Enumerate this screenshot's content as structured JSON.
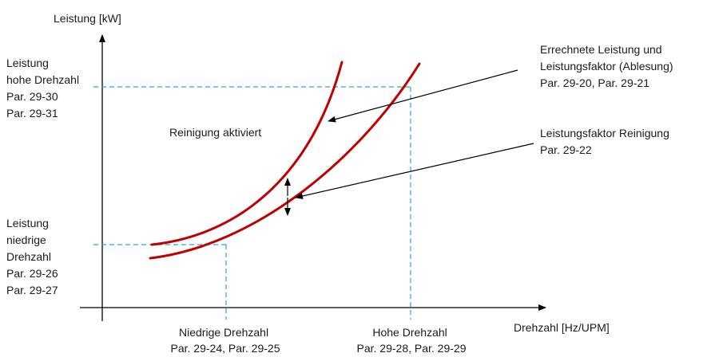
{
  "axes": {
    "y_label": "Leistung [kW]",
    "x_label": "Drehzahl [Hz/UPM]"
  },
  "high_power": {
    "lines": [
      "Leistung",
      "hohe Drehzahl",
      "Par. 29-30",
      "Par. 29-31"
    ]
  },
  "low_power": {
    "lines": [
      "Leistung",
      "niedrige",
      "Drehzahl",
      "Par. 29-26",
      "Par. 29-27"
    ]
  },
  "low_speed": {
    "lines": [
      "Niedrige Drehzahl",
      "Par. 29-24, Par. 29-25"
    ]
  },
  "high_speed": {
    "lines": [
      "Hohe Drehzahl",
      "Par. 29-28, Par. 29-29"
    ]
  },
  "calc_power": {
    "lines": [
      "Errechnete Leistung und",
      "Leistungsfaktor (Ablesung)",
      "Par. 29-20, Par. 29-21"
    ]
  },
  "cleaning_factor": {
    "lines": [
      "Leistungsfaktor Reinigung",
      "Par. 29-22"
    ]
  },
  "cleaning_active": "Reinigung aktiviert",
  "colors": {
    "curve": "#c00000",
    "guide": "#2aa0d8",
    "axis": "#000000",
    "text": "#1a1a1a"
  }
}
